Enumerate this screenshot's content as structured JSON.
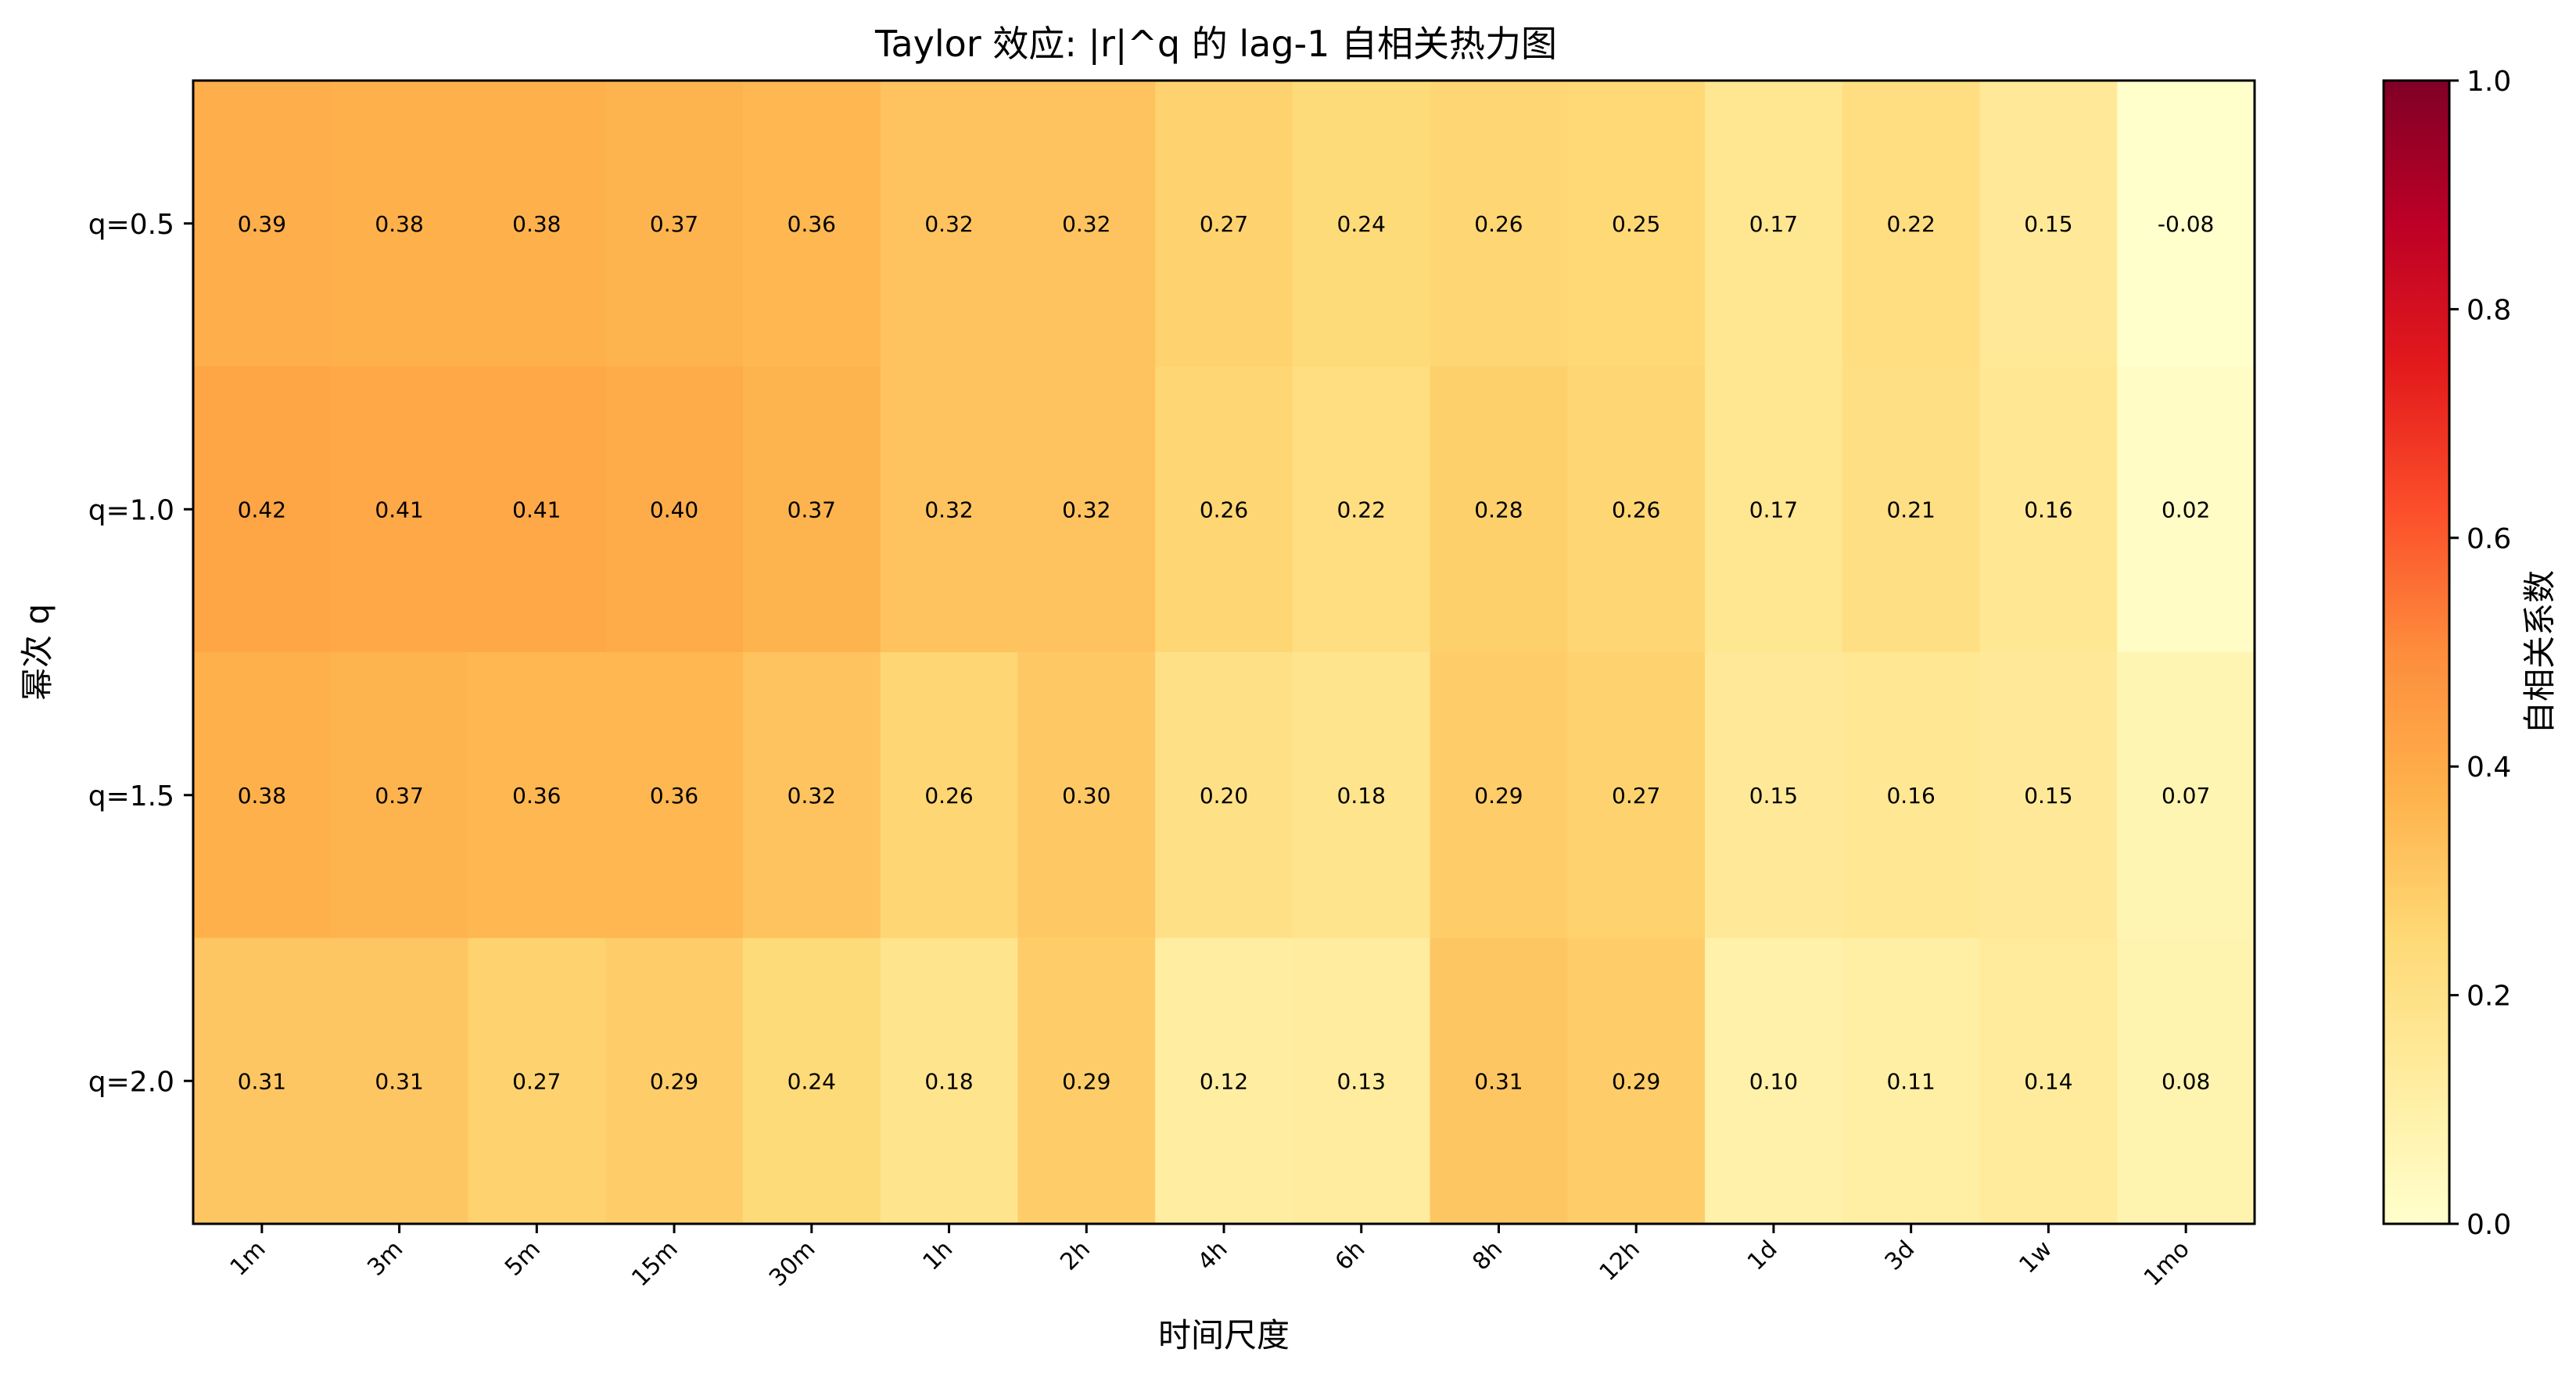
{
  "chart_data": {
    "type": "heatmap",
    "title": "Taylor 效应: |r|^q 的 lag-1 自相关热力图",
    "xlabel": "时间尺度",
    "ylabel": "幂次 q",
    "x_categories": [
      "1m",
      "3m",
      "5m",
      "15m",
      "30m",
      "1h",
      "2h",
      "4h",
      "6h",
      "8h",
      "12h",
      "1d",
      "3d",
      "1w",
      "1mo"
    ],
    "y_categories": [
      "q=0.5",
      "q=1.0",
      "q=1.5",
      "q=2.0"
    ],
    "values": [
      [
        0.39,
        0.38,
        0.38,
        0.37,
        0.36,
        0.32,
        0.32,
        0.27,
        0.24,
        0.26,
        0.25,
        0.17,
        0.22,
        0.15,
        -0.08
      ],
      [
        0.42,
        0.41,
        0.41,
        0.4,
        0.37,
        0.32,
        0.32,
        0.26,
        0.22,
        0.28,
        0.26,
        0.17,
        0.21,
        0.16,
        0.02
      ],
      [
        0.38,
        0.37,
        0.36,
        0.36,
        0.32,
        0.26,
        0.3,
        0.2,
        0.18,
        0.29,
        0.27,
        0.15,
        0.16,
        0.15,
        0.07
      ],
      [
        0.31,
        0.31,
        0.27,
        0.29,
        0.24,
        0.18,
        0.29,
        0.12,
        0.13,
        0.31,
        0.29,
        0.1,
        0.11,
        0.14,
        0.08
      ]
    ],
    "colorbar": {
      "label": "自相关系数",
      "range": [
        0,
        1
      ],
      "ticks": [
        "0.0",
        "0.2",
        "0.4",
        "0.6",
        "0.8",
        "1.0"
      ],
      "colormap": "YlOrRd",
      "stops": [
        "#ffffcc",
        "#ffeda0",
        "#fed976",
        "#feb24c",
        "#fd8d3c",
        "#fc4e2a",
        "#e31a1c",
        "#bd0026",
        "#800026"
      ]
    },
    "grid": false,
    "legend": "colorbar-right"
  }
}
